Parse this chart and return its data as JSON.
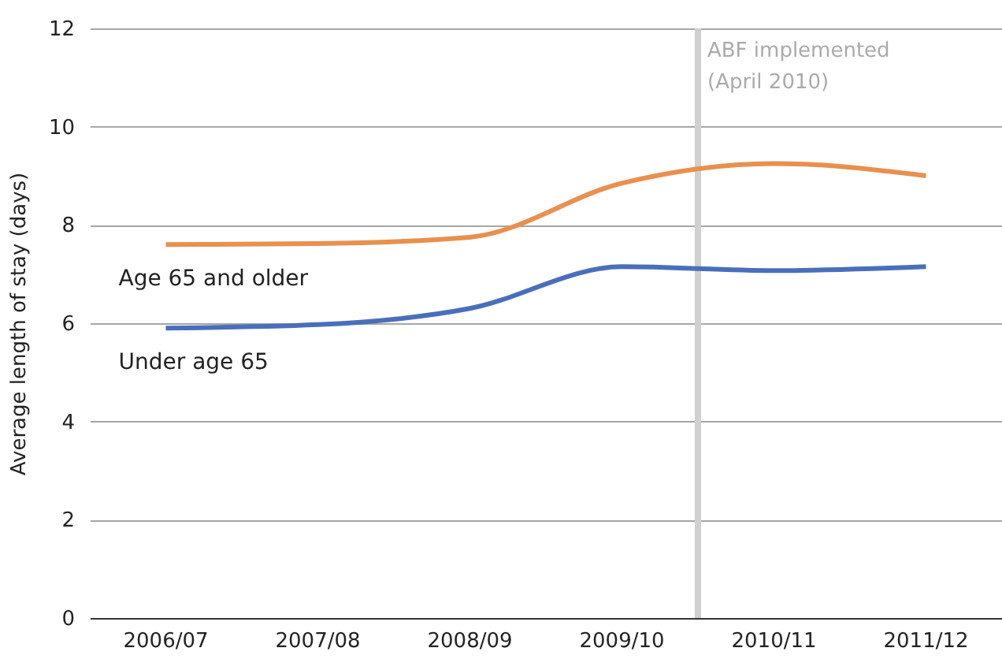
{
  "chart_data": {
    "type": "line",
    "ylabel": "Average length of stay (days)",
    "categories": [
      "2006/07",
      "2007/08",
      "2008/09",
      "2009/10",
      "2010/11",
      "2011/12"
    ],
    "ylim": [
      0,
      12
    ],
    "yticks": [
      0,
      2,
      4,
      6,
      8,
      10,
      12
    ],
    "grid": "y",
    "legend": false,
    "line_style": "solid",
    "series": [
      {
        "name": "Age 65 and older",
        "color": "#e8904f",
        "values": [
          7.6,
          7.62,
          7.75,
          8.85,
          9.25,
          9.0
        ]
      },
      {
        "name": "Under age 65",
        "color": "#4a6fba",
        "values": [
          5.9,
          5.97,
          6.3,
          7.15,
          7.07,
          7.15
        ]
      }
    ],
    "ref_lines": [
      {
        "axis": "x",
        "value": "2010/11",
        "label": "ABF implemented\n(April 2010)",
        "color": "#d0d0d0"
      }
    ]
  }
}
